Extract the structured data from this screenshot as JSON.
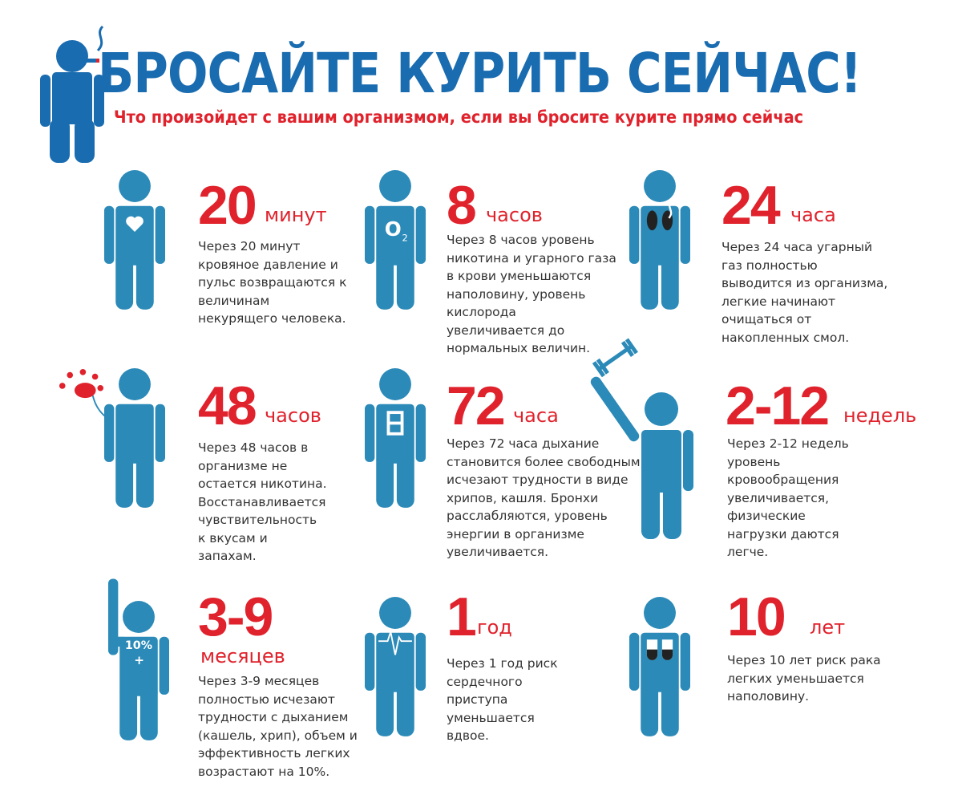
{
  "header": {
    "title": "БРОСАЙТЕ КУРИТЬ СЕЙЧАС!",
    "subtitle": "Что произойдет с вашим организмом, если вы бросите курите прямо сейчас"
  },
  "colors": {
    "title": "#1a6cb0",
    "figure": "#2b8ab8",
    "accent": "#e0222c"
  },
  "items": [
    {
      "num": "20",
      "unit": "минут",
      "icon": "heart-icon",
      "desc": "Через 20 минут\nкровяное давление и\nпульс возвращаются к\nвеличинам\nнекурящего человека."
    },
    {
      "num": "8",
      "unit": "часов",
      "icon": "oxygen-icon",
      "icon_text": "O",
      "icon_sub": "2",
      "desc": "Через 8 часов уровень\nникотина и угарного газа\nв крови уменьшаются\nнаполовину, уровень\nкислорода\nувеличивается до\nнормальных величин."
    },
    {
      "num": "24",
      "unit": "часа",
      "icon": "smoky-lungs-icon",
      "desc": "Через 24 часа угарный\nгаз полностью\nвыводится из организма,\nлегкие начинают\nочищаться от\nнакопленных смол."
    },
    {
      "num": "48",
      "unit": "часов",
      "icon": "flower-icon",
      "desc": "Через 48 часов в\nорганизме не\nостается никотина.\nВосстанавливается\nчувствительность\nк вкусам и\nзапахам."
    },
    {
      "num": "72",
      "unit": "часа",
      "icon": "bronchi-icon",
      "desc": "Через 72 часа дыхание\nстановится более свободным,\nисчезают трудности в виде\nхрипов, кашля. Бронхи\nрасслабляются, уровень\nэнергии в организме\nувеличивается."
    },
    {
      "num": "2-12",
      "unit": "недель",
      "icon": "dumbbell-icon",
      "desc": "Через 2-12 недель\nуровень\nкровообращения\nувеличивается,\nфизические\nнагрузки даются\nлегче."
    },
    {
      "num": "3-9",
      "unit": "месяцев",
      "icon": "lung-capacity-icon",
      "icon_text": "10%",
      "icon_sub": "+",
      "desc": "Через 3-9 месяцев\nполностью исчезают\nтрудности с дыханием\n(кашель, хрип), объем и\nэффективность легких\nвозрастают на 10%."
    },
    {
      "num": "1",
      "unit": "год",
      "icon": "heartbeat-icon",
      "desc": "Через 1 год риск\nсердечного\nприступа\nуменьшается\nвдвое."
    },
    {
      "num": "10",
      "unit": "лет",
      "icon": "clean-lungs-icon",
      "desc": "Через 10 лет риск рака\nлегких уменьшается\nнаполовину."
    }
  ]
}
